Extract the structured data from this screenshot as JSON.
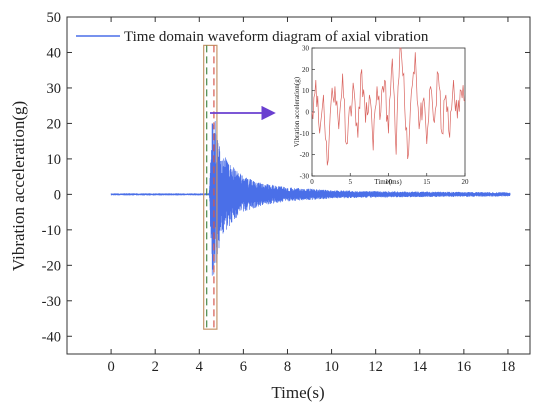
{
  "chart_data": [
    {
      "type": "line",
      "xlabel": "Time(s)",
      "ylabel": "Vibration acceleration(g)",
      "xlim": [
        -2,
        19
      ],
      "ylim": [
        -45,
        50
      ],
      "xticks": [
        0,
        2,
        4,
        6,
        8,
        10,
        12,
        14,
        16,
        18
      ],
      "yticks": [
        -40,
        -30,
        -20,
        -10,
        0,
        10,
        20,
        30,
        40,
        50
      ],
      "legend": {
        "placement": "top-left"
      },
      "grid": false,
      "series": [
        {
          "name": "Time domain waveform diagram of axial vibration",
          "color": "#4a6fe8",
          "x": [
            0,
            4.45,
            4.6,
            4.8,
            5.0,
            5.5,
            6.0,
            7.0,
            8.0,
            10,
            12,
            14,
            16,
            18.1
          ],
          "amplitude": [
            0.3,
            0.3,
            25,
            18,
            12,
            8,
            5,
            3,
            2,
            1.2,
            0.9,
            0.8,
            0.7,
            0.6
          ]
        }
      ],
      "annotations": {
        "highlight_region_x": [
          4.2,
          4.8
        ],
        "highlight_region_y": [
          -38,
          42
        ],
        "arrow_color": "#6a3fd0"
      }
    },
    {
      "type": "line",
      "xlabel": "Time(ms)",
      "ylabel": "Vibration acceleration(g)",
      "xlim": [
        0,
        20
      ],
      "ylim": [
        -30,
        30
      ],
      "xticks": [
        0,
        5,
        10,
        15,
        20
      ],
      "yticks": [
        -30,
        -20,
        -10,
        0,
        10,
        20,
        30
      ],
      "grid": false,
      "series": [
        {
          "color": "#d9645f",
          "x": [
            0,
            0.5,
            1,
            1.5,
            2,
            2.5,
            3,
            3.5,
            4,
            4.5,
            5,
            5.5,
            6,
            6.5,
            7,
            7.5,
            8,
            8.5,
            9,
            9.5,
            10,
            10.5,
            11,
            11.5,
            12,
            12.5,
            13,
            13.5,
            14,
            14.5,
            15,
            15.5,
            16,
            16.5,
            17,
            17.5,
            18,
            18.5,
            19,
            19.5,
            20
          ],
          "y": [
            0,
            15,
            -10,
            8,
            -25,
            5,
            12,
            -8,
            18,
            -15,
            3,
            10,
            -12,
            20,
            -5,
            8,
            -18,
            12,
            0,
            15,
            -10,
            25,
            -20,
            30,
            18,
            -22,
            10,
            28,
            -8,
            5,
            -15,
            12,
            -5,
            18,
            -10,
            8,
            -12,
            15,
            -3,
            10,
            5
          ]
        }
      ]
    }
  ]
}
